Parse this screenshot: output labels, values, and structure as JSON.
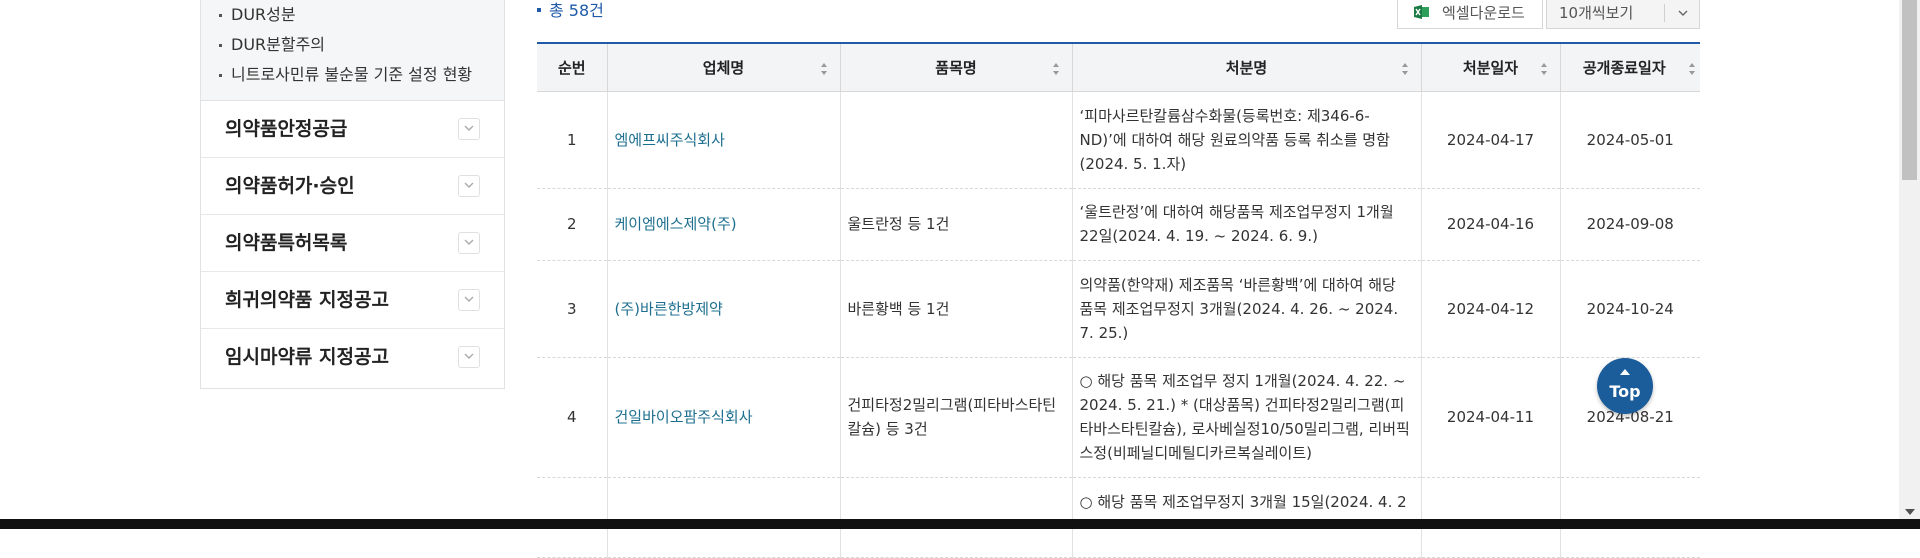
{
  "sidebar": {
    "sub_items": [
      "DUR성분",
      "DUR분할주의",
      "니트로사민류 불순물 기준 설정 현황"
    ],
    "menu": [
      "의약품안정공급",
      "의약품허가·승인",
      "의약품특허목록",
      "희귀의약품 지정공고",
      "임시마약류 지정공고"
    ]
  },
  "toolbar": {
    "total": "총 58건",
    "excel_label": "엑셀다운로드",
    "per_page": "10개씩보기"
  },
  "table": {
    "headers": [
      "순번",
      "업체명",
      "품목명",
      "처분명",
      "처분일자",
      "공개종료일자"
    ],
    "rows": [
      {
        "no": "1",
        "company": "엠에프씨주식회사",
        "product": "",
        "action": "‘피마사르탄칼륨삼수화물(등록번호: 제346-6-ND)’에 대하여 해당 원료의약품 등록 취소를 명함(2024. 5. 1.자)",
        "date": "2024-04-17",
        "end": "2024-05-01"
      },
      {
        "no": "2",
        "company": "케이엠에스제약(주)",
        "product": "울트란정 등 1건",
        "action": "‘울트란정’에 대하여 해당품목 제조업무정지 1개월 22일(2024. 4. 19. ~ 2024. 6. 9.)",
        "date": "2024-04-16",
        "end": "2024-09-08"
      },
      {
        "no": "3",
        "company": "(주)바른한방제약",
        "product": "바른황백 등 1건",
        "action": "의약품(한약재) 제조품목 ‘바른황백’에 대하여 해당 품목 제조업무정지 3개월(2024. 4. 26. ~ 2024. 7. 25.)",
        "date": "2024-04-12",
        "end": "2024-10-24"
      },
      {
        "no": "4",
        "company": "건일바이오팜주식회사",
        "product": "건피타정2밀리그램(피타바스타틴칼슘) 등 3건",
        "action": "○ 해당 품목 제조업무 정지 1개월(2024. 4. 22. ~ 2024. 5. 21.) * (대상품목) 건피타정2밀리그램(피타바스타틴칼슘), 로사베실정10/50밀리그램, 리버픽스정(비페닐디메틸디카르복실레이트)",
        "date": "2024-04-11",
        "end": "2024-08-21"
      },
      {
        "no": "",
        "company": "",
        "product": "",
        "action": "○ 해당 품목 제조업무정지 3개월 15일(2024. 4. 2",
        "date": "",
        "end": ""
      }
    ]
  },
  "top_button": "Top",
  "colors": {
    "accent": "#1e5aa8",
    "top_button": "#1b5c9a",
    "company_link": "#1e6f8f"
  }
}
